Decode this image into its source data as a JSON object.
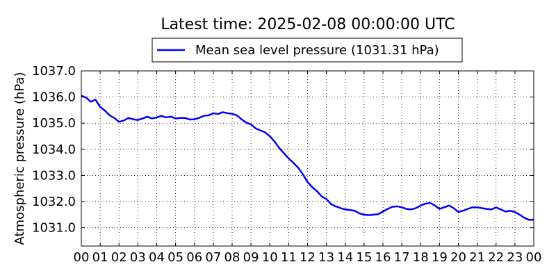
{
  "chart_data": {
    "type": "line",
    "title": "Latest time: 2025-02-08 00:00:00 UTC",
    "xlabel": "",
    "ylabel": "Atmospheric pressure (hPa)",
    "ylim": [
      1030.3,
      1037.0
    ],
    "xlim": [
      0,
      24
    ],
    "grid": true,
    "legend_position": "top-center",
    "series_color": "#0000ff",
    "x_tick_labels": [
      "00",
      "01",
      "02",
      "03",
      "04",
      "05",
      "06",
      "07",
      "08",
      "09",
      "10",
      "11",
      "12",
      "13",
      "14",
      "15",
      "16",
      "17",
      "18",
      "19",
      "20",
      "21",
      "22",
      "23",
      "00"
    ],
    "y_tick_labels": [
      "1031.0",
      "1032.0",
      "1033.0",
      "1034.0",
      "1035.0",
      "1036.0",
      "1037.0"
    ],
    "y_tick_values": [
      1031,
      1032,
      1033,
      1034,
      1035,
      1036,
      1037
    ],
    "series": [
      {
        "name": "Mean sea level pressure (1031.31 hPa)",
        "x": [
          0,
          0.25,
          0.5,
          0.75,
          1,
          1.25,
          1.5,
          1.75,
          2,
          2.25,
          2.5,
          2.75,
          3,
          3.25,
          3.5,
          3.75,
          4,
          4.25,
          4.5,
          4.75,
          5,
          5.25,
          5.5,
          5.75,
          6,
          6.25,
          6.5,
          6.75,
          7,
          7.25,
          7.5,
          7.75,
          8,
          8.25,
          8.5,
          8.75,
          9,
          9.25,
          9.5,
          9.75,
          10,
          10.25,
          10.5,
          10.75,
          11,
          11.25,
          11.5,
          11.75,
          12,
          12.25,
          12.5,
          12.75,
          13,
          13.25,
          13.5,
          13.75,
          14,
          14.25,
          14.5,
          14.75,
          15,
          15.25,
          15.5,
          15.75,
          16,
          16.25,
          16.5,
          16.75,
          17,
          17.25,
          17.5,
          17.75,
          18,
          18.25,
          18.5,
          18.75,
          19,
          19.25,
          19.5,
          19.75,
          20,
          20.25,
          20.5,
          20.75,
          21,
          21.25,
          21.5,
          21.75,
          22,
          22.25,
          22.5,
          22.75,
          23,
          23.25,
          23.5,
          23.75,
          24
        ],
        "values": [
          1036.05,
          1035.98,
          1035.82,
          1035.9,
          1035.62,
          1035.48,
          1035.3,
          1035.2,
          1035.05,
          1035.1,
          1035.2,
          1035.15,
          1035.12,
          1035.18,
          1035.25,
          1035.18,
          1035.22,
          1035.28,
          1035.22,
          1035.25,
          1035.18,
          1035.2,
          1035.2,
          1035.14,
          1035.15,
          1035.2,
          1035.28,
          1035.3,
          1035.38,
          1035.35,
          1035.42,
          1035.38,
          1035.36,
          1035.3,
          1035.15,
          1035.02,
          1034.95,
          1034.8,
          1034.72,
          1034.65,
          1034.5,
          1034.3,
          1034.05,
          1033.85,
          1033.65,
          1033.48,
          1033.3,
          1033.05,
          1032.75,
          1032.55,
          1032.4,
          1032.2,
          1032.1,
          1031.9,
          1031.82,
          1031.75,
          1031.7,
          1031.68,
          1031.65,
          1031.55,
          1031.5,
          1031.48,
          1031.5,
          1031.52,
          1031.62,
          1031.72,
          1031.8,
          1031.82,
          1031.78,
          1031.72,
          1031.7,
          1031.75,
          1031.85,
          1031.92,
          1031.95,
          1031.85,
          1031.72,
          1031.78,
          1031.85,
          1031.75,
          1031.6,
          1031.65,
          1031.72,
          1031.78,
          1031.78,
          1031.75,
          1031.72,
          1031.7,
          1031.78,
          1031.7,
          1031.62,
          1031.65,
          1031.6,
          1031.5,
          1031.38,
          1031.3,
          1031.31
        ]
      }
    ]
  }
}
